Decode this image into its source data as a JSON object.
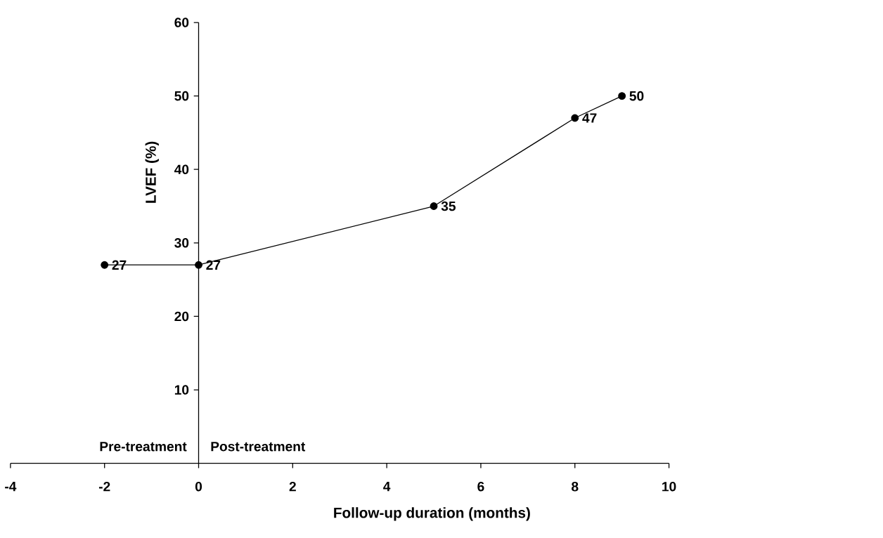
{
  "chart_data": {
    "type": "line",
    "xlabel": "Follow-up duration (months)",
    "ylabel": "LVEF (%)",
    "x": [
      -2,
      0,
      5,
      8,
      9
    ],
    "series": [
      {
        "color": "#000000",
        "values": [
          27,
          27,
          35,
          47,
          50
        ]
      }
    ],
    "xlim": [
      -4,
      10
    ],
    "xticks": [
      -4,
      -2,
      0,
      2,
      4,
      6,
      8,
      10
    ],
    "ylim": [
      0,
      60
    ],
    "yticks": [
      10,
      20,
      30,
      40,
      50,
      60
    ],
    "marker": "circle",
    "line_style": "solid",
    "data_labels": true,
    "grid": false,
    "annotations": [
      "Pre-treatment",
      "Post-treatment"
    ]
  }
}
